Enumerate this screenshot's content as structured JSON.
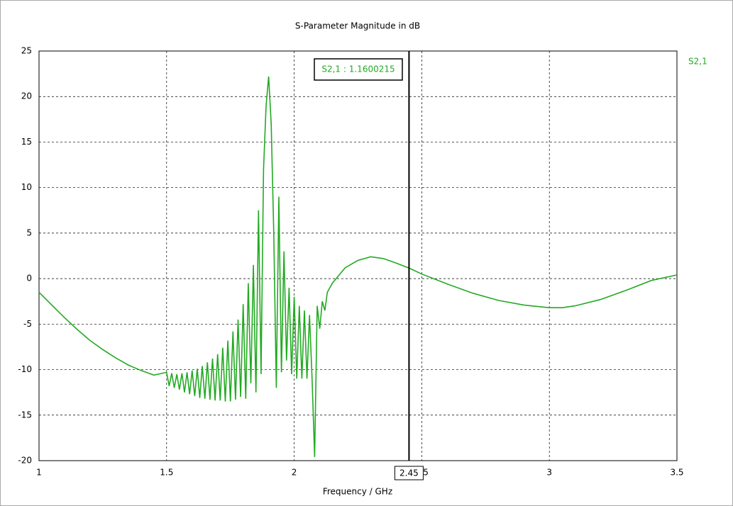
{
  "chart_data": {
    "type": "line",
    "title": "S-Parameter Magnitude in dB",
    "x_label": "Frequency / GHz",
    "xlim": [
      1,
      3.5
    ],
    "xticks": [
      1,
      1.5,
      2,
      2.5,
      3,
      3.5
    ],
    "ylim": [
      -20,
      25
    ],
    "yticks": [
      -20,
      -15,
      -10,
      -5,
      0,
      5,
      10,
      15,
      20,
      25
    ],
    "grid": true,
    "x": [
      1.0,
      1.05,
      1.1,
      1.15,
      1.2,
      1.25,
      1.3,
      1.35,
      1.4,
      1.45,
      1.5,
      1.51,
      1.52,
      1.53,
      1.54,
      1.55,
      1.56,
      1.57,
      1.58,
      1.59,
      1.6,
      1.61,
      1.62,
      1.63,
      1.64,
      1.65,
      1.66,
      1.67,
      1.68,
      1.69,
      1.7,
      1.71,
      1.72,
      1.73,
      1.74,
      1.75,
      1.76,
      1.77,
      1.78,
      1.79,
      1.8,
      1.81,
      1.82,
      1.83,
      1.84,
      1.85,
      1.86,
      1.87,
      1.88,
      1.89,
      1.9,
      1.91,
      1.92,
      1.93,
      1.94,
      1.95,
      1.96,
      1.97,
      1.98,
      1.99,
      2.0,
      2.01,
      2.02,
      2.03,
      2.04,
      2.05,
      2.06,
      2.07,
      2.08,
      2.09,
      2.1,
      2.11,
      2.12,
      2.13,
      2.15,
      2.2,
      2.25,
      2.3,
      2.35,
      2.4,
      2.45,
      2.5,
      2.6,
      2.7,
      2.8,
      2.9,
      3.0,
      3.05,
      3.1,
      3.2,
      3.3,
      3.4,
      3.5
    ],
    "series": [
      {
        "name": "S2,1",
        "color": "#22aa22",
        "values": [
          -1.5,
          -2.9,
          -4.3,
          -5.6,
          -6.8,
          -7.8,
          -8.7,
          -9.5,
          -10.1,
          -10.6,
          -10.3,
          -11.8,
          -10.4,
          -12.0,
          -10.5,
          -12.2,
          -10.4,
          -12.5,
          -10.3,
          -12.7,
          -10.1,
          -12.9,
          -9.9,
          -13.1,
          -9.6,
          -13.2,
          -9.2,
          -13.3,
          -8.8,
          -13.4,
          -8.3,
          -13.4,
          -7.6,
          -13.5,
          -6.8,
          -13.5,
          -5.8,
          -13.3,
          -4.5,
          -13.0,
          -2.8,
          -13.2,
          -0.5,
          -11.5,
          1.5,
          -12.5,
          7.5,
          -10.5,
          12,
          19,
          22.2,
          17,
          5,
          -12,
          9,
          -10.3,
          3,
          -9,
          -1,
          -10.5,
          -2,
          -11,
          -3,
          -11,
          -3.5,
          -11,
          -4,
          -11,
          -19.6,
          -3,
          -5.5,
          -2.5,
          -3.5,
          -1.5,
          -0.5,
          1.2,
          2.0,
          2.4,
          2.2,
          1.7,
          1.16,
          0.5,
          -0.6,
          -1.6,
          -2.4,
          -2.9,
          -3.2,
          -3.2,
          -3.0,
          -2.3,
          -1.3,
          -0.2,
          0.4
        ]
      }
    ],
    "marker": {
      "x": 2.45,
      "label": "S2,1 : 1.1600215"
    }
  }
}
